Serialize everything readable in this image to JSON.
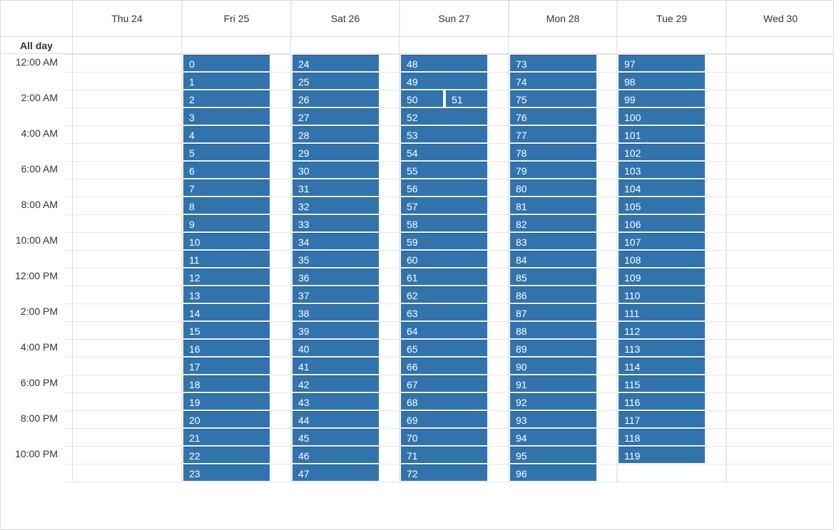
{
  "calendar": {
    "days": [
      "Thu 24",
      "Fri 25",
      "Sat 26",
      "Sun 27",
      "Mon 28",
      "Tue 29",
      "Wed 30"
    ],
    "allday_label": "All day",
    "time_labels": [
      "12:00 AM",
      "2:00 AM",
      "4:00 AM",
      "6:00 AM",
      "8:00 AM",
      "10:00 AM",
      "12:00 PM",
      "2:00 PM",
      "4:00 PM",
      "6:00 PM",
      "8:00 PM",
      "10:00 PM"
    ],
    "events": {
      "fri": [
        "0",
        "1",
        "2",
        "3",
        "4",
        "5",
        "6",
        "7",
        "8",
        "9",
        "10",
        "11",
        "12",
        "13",
        "14",
        "15",
        "16",
        "17",
        "18",
        "19",
        "20",
        "21",
        "22",
        "23"
      ],
      "sat": [
        "24",
        "25",
        "26",
        "27",
        "28",
        "29",
        "30",
        "31",
        "32",
        "33",
        "34",
        "35",
        "36",
        "37",
        "38",
        "39",
        "40",
        "41",
        "42",
        "43",
        "44",
        "45",
        "46",
        "47"
      ],
      "sun": [
        "48",
        "49",
        "50",
        "51",
        "52",
        "53",
        "54",
        "55",
        "56",
        "57",
        "58",
        "59",
        "60",
        "61",
        "62",
        "63",
        "64",
        "65",
        "66",
        "67",
        "68",
        "69",
        "70",
        "71",
        "72"
      ],
      "mon": [
        "73",
        "74",
        "75",
        "76",
        "77",
        "78",
        "79",
        "80",
        "81",
        "82",
        "83",
        "84",
        "85",
        "86",
        "87",
        "88",
        "89",
        "90",
        "91",
        "92",
        "93",
        "94",
        "95",
        "96"
      ],
      "tue": [
        "97",
        "98",
        "99",
        "100",
        "101",
        "102",
        "103",
        "104",
        "105",
        "106",
        "107",
        "108",
        "109",
        "110",
        "111",
        "112",
        "113",
        "114",
        "115",
        "116",
        "117",
        "118",
        "119"
      ]
    },
    "event_color": "#3174ad"
  }
}
